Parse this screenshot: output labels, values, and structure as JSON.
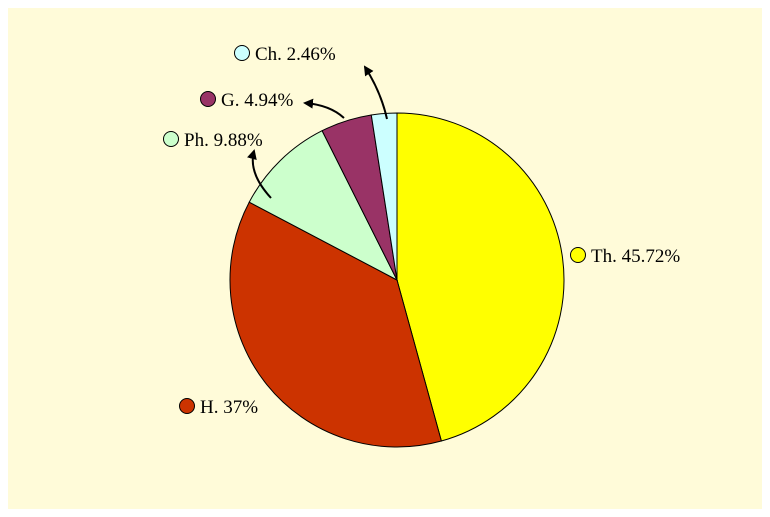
{
  "chart_data": {
    "type": "pie",
    "slices": [
      {
        "name": "Th.",
        "value": 45.72,
        "label": "Th. 45.72%",
        "color": "#ffff00"
      },
      {
        "name": "H.",
        "value": 37,
        "label": "H. 37%",
        "color": "#cc3300"
      },
      {
        "name": "Ph.",
        "value": 9.88,
        "label": "Ph. 9.88%",
        "color": "#ccffcc"
      },
      {
        "name": "G.",
        "value": 4.94,
        "label": "G. 4.94%",
        "color": "#993366"
      },
      {
        "name": "Ch.",
        "value": 2.46,
        "label": "Ch. 2.46%",
        "color": "#ccffff"
      }
    ],
    "start_angle_deg": 0,
    "direction": "clockwise",
    "legend": "none",
    "background_color": "#fffbd9",
    "edge_color": "#000000"
  }
}
